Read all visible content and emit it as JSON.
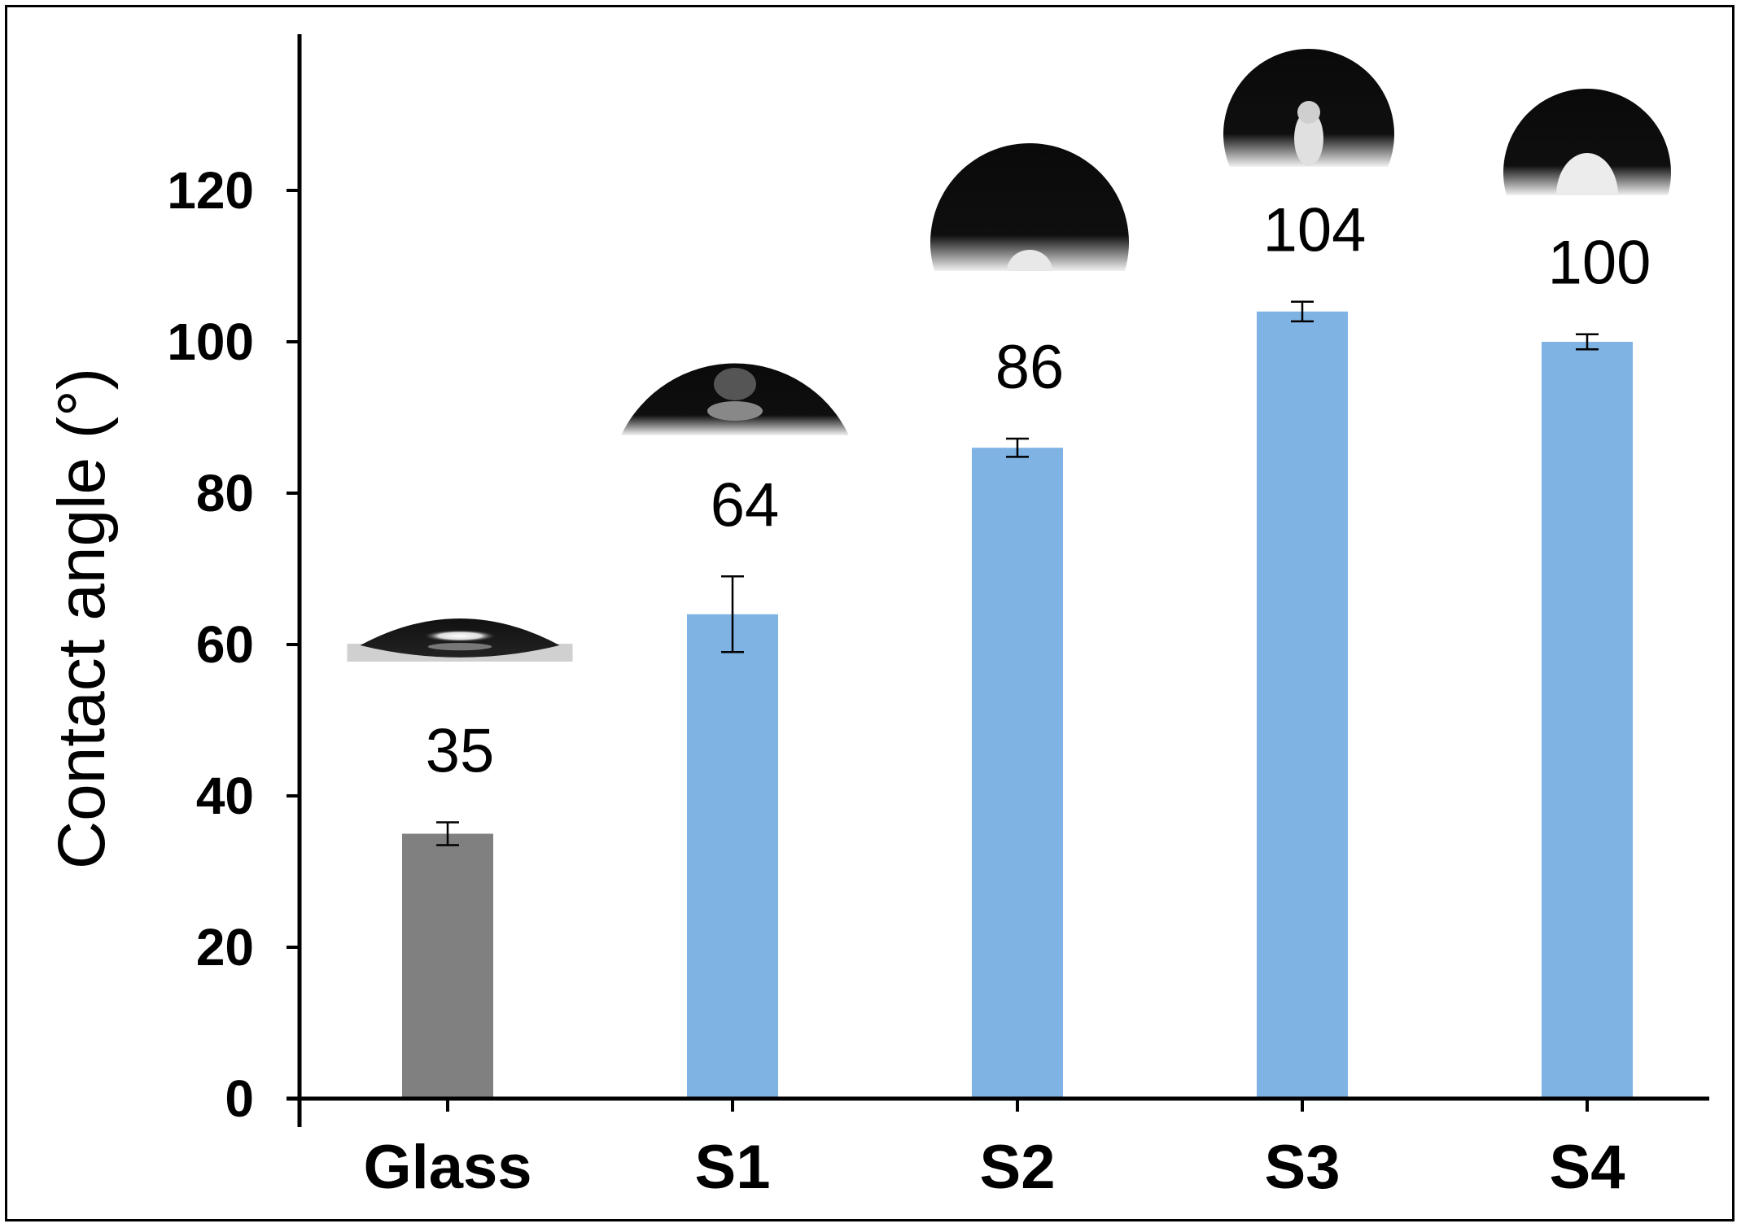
{
  "chart_data": {
    "type": "bar",
    "title": "",
    "xlabel": "",
    "ylabel": "Contact angle (°)",
    "ylim": [
      0,
      140
    ],
    "yticks": [
      0,
      20,
      40,
      60,
      80,
      100,
      120
    ],
    "grid": false,
    "categories": [
      "Glass",
      "S1",
      "S2",
      "S3",
      "S4"
    ],
    "values": [
      35,
      64,
      86,
      104,
      100
    ],
    "errors": [
      1.5,
      5,
      1.2,
      1.3,
      1
    ],
    "data_labels": [
      "35",
      "64",
      "86",
      "104",
      "100"
    ],
    "colors": [
      "#808080",
      "#7fb3e4",
      "#7fb3e4",
      "#7fb3e4",
      "#7fb3e4"
    ],
    "insets": [
      "droplet-image",
      "droplet-image",
      "droplet-image",
      "droplet-image",
      "droplet-image"
    ]
  }
}
